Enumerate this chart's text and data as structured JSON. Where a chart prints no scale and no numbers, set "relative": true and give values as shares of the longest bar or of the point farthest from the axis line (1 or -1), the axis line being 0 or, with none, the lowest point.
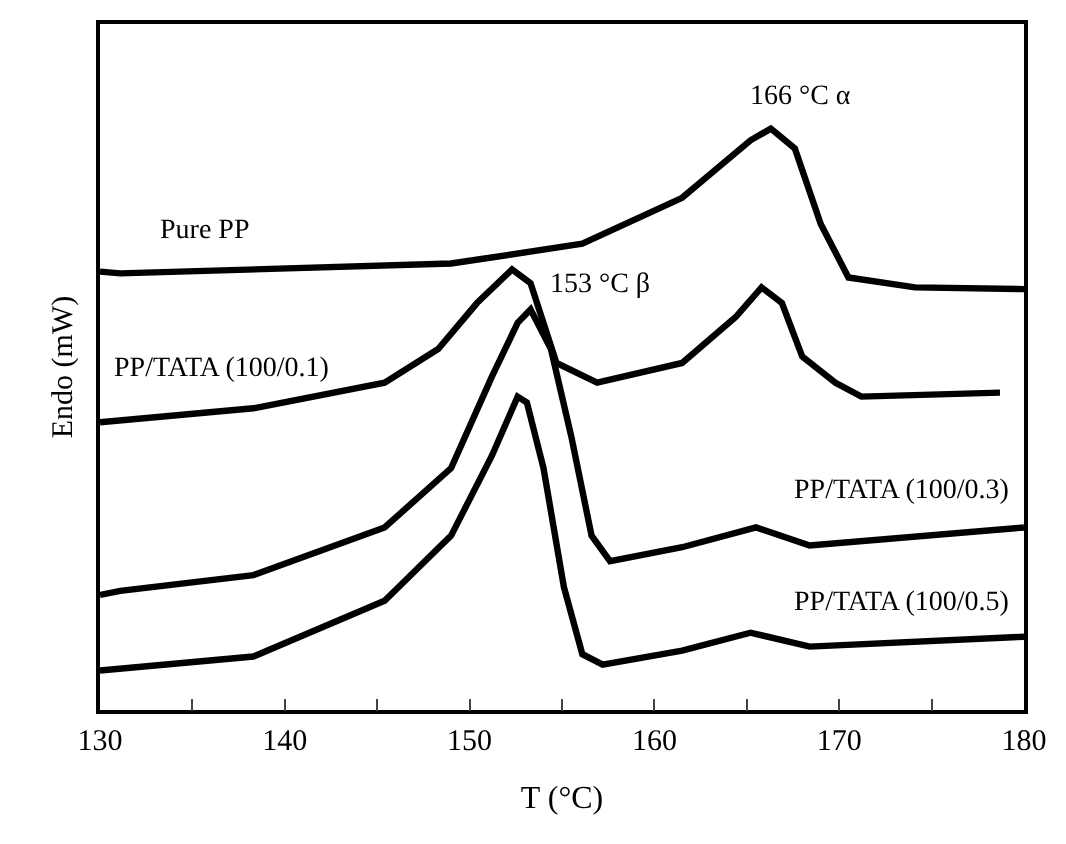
{
  "chart_data": {
    "type": "line",
    "relative": true,
    "xlabel": "T (°C)",
    "ylabel": "Endo (mW)",
    "xlim": [
      130,
      180
    ],
    "xticks": [
      130,
      {
        "value": 135,
        "label": null
      },
      140,
      {
        "value": 145,
        "label": null
      },
      150,
      {
        "value": 155,
        "label": null
      },
      160,
      {
        "value": 165,
        "label": null
      },
      170,
      {
        "value": 175,
        "label": null
      },
      180
    ],
    "legend": false,
    "marker": "none",
    "line_style": "solid",
    "series": [
      {
        "name": "Pure PP",
        "color": "#000000",
        "x": [
          130,
          131.1,
          149.0,
          156.1,
          161.5,
          165.2,
          166.3,
          167.6,
          169.0,
          170.5,
          174.1,
          180
        ],
        "values": [
          0.754,
          0.751,
          0.768,
          0.802,
          0.881,
          0.98,
          1.0,
          0.966,
          0.836,
          0.744,
          0.727,
          0.724
        ]
      },
      {
        "name": "PP/TATA (100/0.1)",
        "color": "#000000",
        "x": [
          130,
          138.3,
          145.4,
          148.3,
          150.4,
          152.3,
          153.3,
          154.7,
          156.9,
          161.5,
          164.4,
          165.8,
          166.9,
          168.0,
          169.8,
          171.2,
          178.7
        ],
        "values": [
          0.495,
          0.519,
          0.563,
          0.621,
          0.7,
          0.758,
          0.734,
          0.597,
          0.563,
          0.597,
          0.676,
          0.727,
          0.7,
          0.608,
          0.563,
          0.539,
          0.546
        ]
      },
      {
        "name": "PP/TATA (100/0.3)",
        "color": "#000000",
        "x": [
          130,
          131.1,
          138.3,
          145.4,
          149.0,
          151.2,
          152.6,
          153.3,
          154.4,
          155.5,
          156.6,
          157.6,
          161.5,
          165.5,
          168.4,
          180
        ],
        "values": [
          0.198,
          0.205,
          0.232,
          0.314,
          0.416,
          0.573,
          0.666,
          0.689,
          0.621,
          0.471,
          0.3,
          0.256,
          0.28,
          0.314,
          0.283,
          0.314
        ]
      },
      {
        "name": "PP/TATA (100/0.5)",
        "color": "#000000",
        "x": [
          130,
          138.3,
          145.4,
          149.0,
          151.2,
          152.6,
          153.1,
          154.0,
          155.1,
          156.1,
          157.2,
          161.5,
          165.2,
          168.4,
          180
        ],
        "values": [
          0.068,
          0.092,
          0.188,
          0.3,
          0.437,
          0.539,
          0.529,
          0.416,
          0.212,
          0.096,
          0.078,
          0.102,
          0.133,
          0.109,
          0.126
        ]
      }
    ],
    "annotations": [
      {
        "text": "166 °C α",
        "x": 166,
        "y": 1.0
      },
      {
        "text": "153 °C β",
        "x": 153,
        "y": 0.73
      }
    ]
  }
}
